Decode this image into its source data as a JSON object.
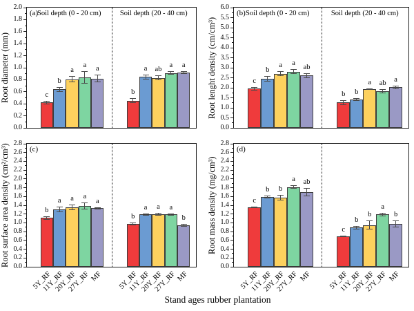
{
  "chart_data": {
    "type": "bar",
    "xlabel": "Stand ages rubber plantation",
    "categories": [
      "5Y_RF",
      "11Y_RF",
      "20Y_RF",
      "27Y_RF",
      "MF"
    ],
    "bar_colors": [
      "#ef3b3c",
      "#6b9bd2",
      "#fdd15e",
      "#7ed5a1",
      "#9a99c5"
    ],
    "error_bar_color": "#4a4a4a",
    "layout_hint": "2x2 grid of panels, each split by dotted line into two soil-depth groups, grid off, no legend",
    "panels": [
      {
        "panel_letter": "(a)",
        "ylabel": "Root diameter (mm)",
        "ylim": [
          0,
          2.0
        ],
        "ytick_step": 0.2,
        "group_labels": [
          "Soil depth (0 - 20 cm)",
          "Soil depth (20 - 40 cm)"
        ],
        "groups": [
          {
            "values": [
              0.42,
              0.64,
              0.81,
              0.84,
              0.82
            ],
            "errors": [
              0.03,
              0.04,
              0.05,
              0.1,
              0.06
            ],
            "sig_letters": [
              "c",
              "b",
              "a",
              "a",
              "a"
            ]
          },
          {
            "values": [
              0.45,
              0.85,
              0.83,
              0.91,
              0.92
            ],
            "errors": [
              0.04,
              0.04,
              0.04,
              0.03,
              0.02
            ],
            "sig_letters": [
              "b",
              "a",
              "ab",
              "a",
              "a"
            ]
          }
        ]
      },
      {
        "panel_letter": "(b)",
        "ylabel": "Root lenght density (cm/cm³)",
        "ylim": [
          0,
          6.0
        ],
        "ytick_step": 0.5,
        "group_labels": [
          "Soil depth (0 - 20 cm)",
          "Soil depth (20 - 40 cm)"
        ],
        "groups": [
          {
            "values": [
              1.95,
              2.45,
              2.7,
              2.8,
              2.62
            ],
            "errors": [
              0.1,
              0.15,
              0.12,
              0.12,
              0.12
            ],
            "sig_letters": [
              "c",
              "b",
              "a",
              "a",
              "ab"
            ]
          },
          {
            "values": [
              1.27,
              1.41,
              1.93,
              1.83,
              2.02
            ],
            "errors": [
              0.12,
              0.08,
              0.05,
              0.1,
              0.1
            ],
            "sig_letters": [
              "b",
              "b",
              "a",
              "ab",
              "a"
            ]
          }
        ]
      },
      {
        "panel_letter": "(c)",
        "ylabel": "Root surface area density (cm²/cm³)",
        "ylim": [
          0,
          2.8
        ],
        "ytick_step": 0.2,
        "group_labels": [],
        "groups": [
          {
            "values": [
              1.11,
              1.31,
              1.35,
              1.38,
              1.33
            ],
            "errors": [
              0.04,
              0.06,
              0.06,
              0.08,
              0.03
            ],
            "sig_letters": [
              "b",
              "a",
              "a",
              "a",
              "a"
            ]
          },
          {
            "values": [
              0.97,
              1.19,
              1.2,
              1.19,
              0.95
            ],
            "errors": [
              0.03,
              0.02,
              0.03,
              0.02,
              0.03
            ],
            "sig_letters": [
              "b",
              "a",
              "a",
              "a",
              "b"
            ]
          }
        ]
      },
      {
        "panel_letter": "(d)",
        "ylabel": "Root mass density (mg/cm³)",
        "ylim": [
          0,
          2.8
        ],
        "ytick_step": 0.2,
        "group_labels": [],
        "groups": [
          {
            "values": [
              1.35,
              1.59,
              1.57,
              1.81,
              1.7
            ],
            "errors": [
              0.02,
              0.03,
              0.06,
              0.04,
              0.1
            ],
            "sig_letters": [
              "c",
              "b",
              "b",
              "a",
              "ab"
            ]
          },
          {
            "values": [
              0.69,
              0.89,
              0.95,
              1.19,
              0.98
            ],
            "errors": [
              0.02,
              0.04,
              0.1,
              0.04,
              0.08
            ],
            "sig_letters": [
              "c",
              "b",
              "b",
              "a",
              "b"
            ]
          }
        ]
      }
    ]
  }
}
